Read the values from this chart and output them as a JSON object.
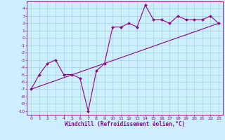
{
  "line1_x": [
    0,
    1,
    2,
    3,
    4,
    5,
    6,
    7,
    8,
    9,
    10,
    11,
    12,
    13,
    14,
    15,
    16,
    17,
    18,
    19,
    20,
    21,
    22,
    23
  ],
  "line1_y": [
    -7,
    -5,
    -3.5,
    -3.0,
    -5.0,
    -5.0,
    -5.5,
    -10,
    -4.5,
    -3.5,
    1.5,
    1.5,
    2.0,
    1.5,
    4.5,
    2.5,
    2.5,
    2.0,
    3.0,
    2.5,
    2.5,
    2.5,
    3.0,
    2.0
  ],
  "line2_x": [
    0,
    23
  ],
  "line2_y": [
    -7,
    2.0
  ],
  "line_color": "#8B008B",
  "marker": "D",
  "marker_size": 2,
  "bg_color": "#cceeff",
  "grid_color": "#99cccc",
  "xlabel": "Windchill (Refroidissement éolien,°C)",
  "xlim": [
    -0.5,
    23.5
  ],
  "ylim": [
    -10.5,
    5.0
  ],
  "xticks": [
    0,
    1,
    2,
    3,
    4,
    5,
    6,
    7,
    8,
    9,
    10,
    11,
    12,
    13,
    14,
    15,
    16,
    17,
    18,
    19,
    20,
    21,
    22,
    23
  ],
  "yticks": [
    -10,
    -9,
    -8,
    -7,
    -6,
    -5,
    -4,
    -3,
    -2,
    -1,
    0,
    1,
    2,
    3,
    4
  ],
  "tick_fontsize": 4.5,
  "xlabel_fontsize": 5.5
}
